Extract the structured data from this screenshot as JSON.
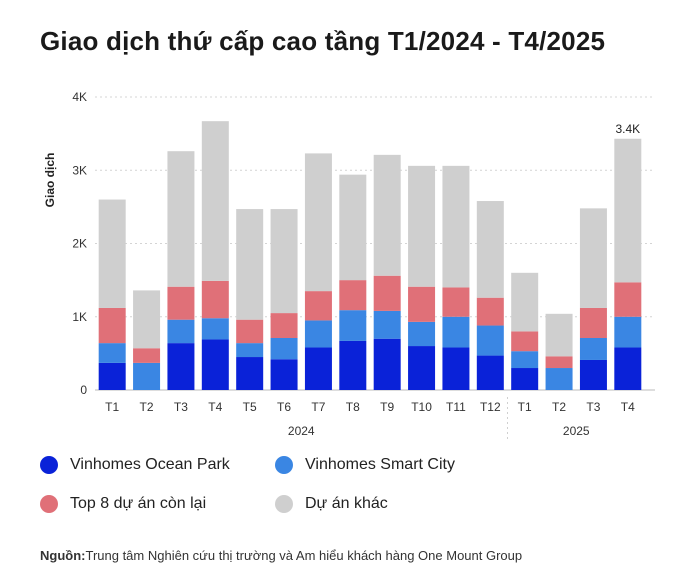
{
  "title": "Giao dịch thứ cấp cao tầng T1/2024 - T4/2025",
  "legend": {
    "s1": "Vinhomes Ocean Park",
    "s2": "Vinhomes Smart City",
    "s3": "Top 8 dự án còn lại",
    "s4": "Dự án khác"
  },
  "source": {
    "label": "Nguồn:",
    "text": "Trung tâm Nghiên cứu thị trường và Am hiểu khách hàng One Mount Group"
  },
  "colors": {
    "s1": "#0a22d8",
    "s2": "#3a86e3",
    "s3": "#e07078",
    "s4": "#cfcfcf"
  },
  "chart_data": {
    "type": "bar",
    "stacked": true,
    "ylabel": "Giao dịch",
    "ylim": [
      0,
      4000
    ],
    "yticks": [
      0,
      1000,
      2000,
      3000,
      4000
    ],
    "ytick_labels": [
      "0",
      "1K",
      "2K",
      "3K",
      "4K"
    ],
    "grid": true,
    "categories": [
      "T1",
      "T2",
      "T3",
      "T4",
      "T5",
      "T6",
      "T7",
      "T8",
      "T9",
      "T10",
      "T11",
      "T12",
      "T1",
      "T2",
      "T3",
      "T4"
    ],
    "groups": [
      {
        "label": "2024",
        "count": 12
      },
      {
        "label": "2025",
        "count": 4
      }
    ],
    "series": [
      {
        "name": "Vinhomes Ocean Park",
        "values": [
          370,
          0,
          640,
          690,
          450,
          420,
          580,
          670,
          700,
          600,
          580,
          470,
          300,
          0,
          410,
          580
        ]
      },
      {
        "name": "Vinhomes Smart City",
        "values": [
          270,
          370,
          320,
          290,
          190,
          290,
          370,
          420,
          380,
          330,
          420,
          410,
          230,
          300,
          300,
          420
        ]
      },
      {
        "name": "Top 8 dự án còn lại",
        "values": [
          480,
          200,
          450,
          510,
          320,
          340,
          400,
          410,
          480,
          480,
          400,
          380,
          270,
          160,
          410,
          470
        ]
      },
      {
        "name": "Dự án khác",
        "values": [
          1480,
          790,
          1850,
          2180,
          1510,
          1420,
          1880,
          1440,
          1650,
          1650,
          1660,
          1320,
          800,
          580,
          1360,
          1960
        ]
      }
    ],
    "annotations": [
      {
        "category_index": 15,
        "text": "3.4K"
      }
    ]
  }
}
